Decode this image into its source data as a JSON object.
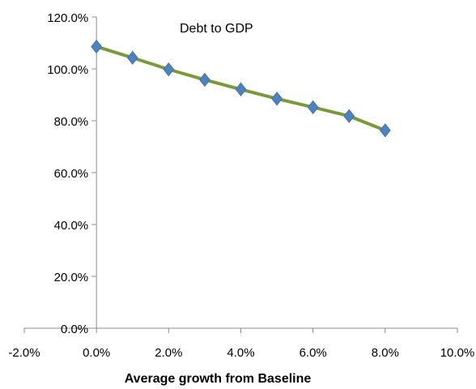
{
  "chart_data": {
    "type": "scatter",
    "title": "Debt to GDP",
    "xlabel": "Average growth  from Baseline",
    "ylabel": "",
    "xlim": [
      -0.02,
      0.1
    ],
    "ylim": [
      0.0,
      1.2
    ],
    "x_ticks": [
      -0.02,
      0.0,
      0.02,
      0.04,
      0.06,
      0.08,
      0.1
    ],
    "x_tick_labels": [
      "-2.0%",
      "0.0%",
      "2.0%",
      "4.0%",
      "6.0%",
      "8.0%",
      "10.0%"
    ],
    "y_ticks": [
      0.0,
      0.2,
      0.4,
      0.6,
      0.8,
      1.0,
      1.2
    ],
    "y_tick_labels": [
      "0.0%",
      "20.0%",
      "40.0%",
      "60.0%",
      "80.0%",
      "100.0%",
      "120.0%"
    ],
    "grid": false,
    "legend": "none",
    "series": [
      {
        "x": [
          0.0,
          0.01,
          0.02,
          0.03,
          0.04,
          0.05,
          0.06,
          0.07,
          0.08
        ],
        "y": [
          1.086,
          1.043,
          0.998,
          0.958,
          0.921,
          0.885,
          0.852,
          0.818,
          0.763
        ],
        "line_color": "#7a9a3a",
        "marker_color": "#4f81bd",
        "marker": "diamond"
      }
    ]
  }
}
